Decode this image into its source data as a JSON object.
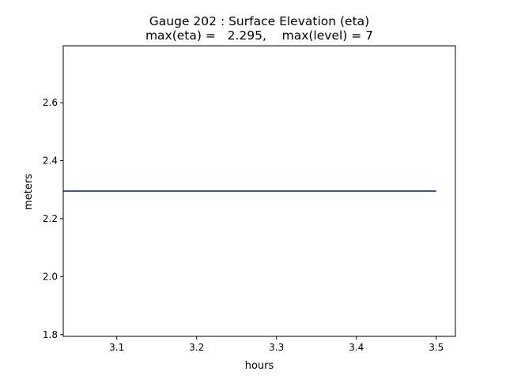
{
  "chart_data": {
    "type": "line",
    "title_line1": "Gauge 202 : Surface Elevation (eta)",
    "title_line2": "max(eta) =   2.295,    max(level) = 7",
    "xlabel": "hours",
    "ylabel": "meters",
    "xlim": [
      3.033,
      3.524
    ],
    "ylim": [
      1.794,
      2.796
    ],
    "x_ticks": [
      3.1,
      3.2,
      3.3,
      3.4,
      3.5
    ],
    "x_tick_labels": [
      "3.1",
      "3.2",
      "3.3",
      "3.4",
      "3.5"
    ],
    "y_ticks": [
      1.8,
      2.0,
      2.2,
      2.4,
      2.6
    ],
    "y_tick_labels": [
      "1.8",
      "2.0",
      "2.2",
      "2.4",
      "2.6"
    ],
    "grid": false,
    "series": [
      {
        "color": "#0000ff",
        "x": [
          3.0333,
          3.5
        ],
        "y": [
          2.295,
          2.295
        ]
      }
    ]
  }
}
